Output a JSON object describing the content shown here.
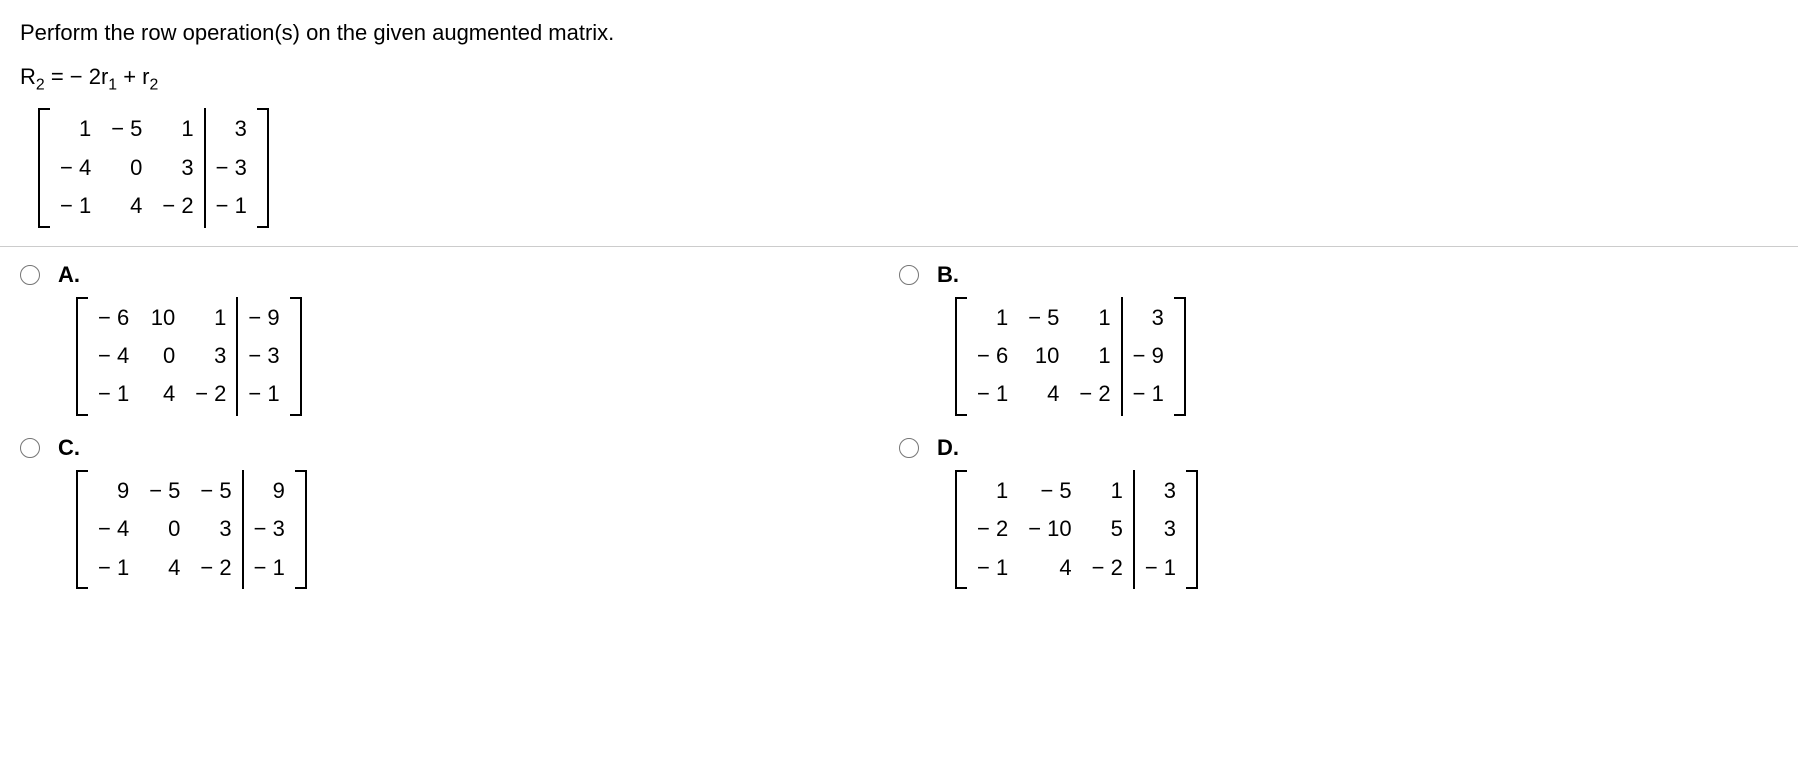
{
  "prompt": "Perform the row operation(s) on the given augmented matrix.",
  "operation_html": "R<span class=\"sub\">2</span> = − 2r<span class=\"sub\">1</span> + r<span class=\"sub\">2</span>",
  "given_matrix": {
    "left": [
      [
        "1",
        "− 5",
        "1"
      ],
      [
        "− 4",
        "0",
        "3"
      ],
      [
        "− 1",
        "4",
        "− 2"
      ]
    ],
    "right": [
      [
        "3"
      ],
      [
        "− 3"
      ],
      [
        "− 1"
      ]
    ]
  },
  "choices": [
    {
      "id": "A",
      "label": "A.",
      "matrix": {
        "left": [
          [
            "− 6",
            "10",
            "1"
          ],
          [
            "− 4",
            "0",
            "3"
          ],
          [
            "− 1",
            "4",
            "− 2"
          ]
        ],
        "right": [
          [
            "− 9"
          ],
          [
            "− 3"
          ],
          [
            "− 1"
          ]
        ]
      }
    },
    {
      "id": "B",
      "label": "B.",
      "matrix": {
        "left": [
          [
            "1",
            "− 5",
            "1"
          ],
          [
            "− 6",
            "10",
            "1"
          ],
          [
            "− 1",
            "4",
            "− 2"
          ]
        ],
        "right": [
          [
            "3"
          ],
          [
            "− 9"
          ],
          [
            "− 1"
          ]
        ]
      }
    },
    {
      "id": "C",
      "label": "C.",
      "matrix": {
        "left": [
          [
            "9",
            "− 5",
            "− 5"
          ],
          [
            "− 4",
            "0",
            "3"
          ],
          [
            "− 1",
            "4",
            "− 2"
          ]
        ],
        "right": [
          [
            "9"
          ],
          [
            "− 3"
          ],
          [
            "− 1"
          ]
        ]
      }
    },
    {
      "id": "D",
      "label": "D.",
      "matrix": {
        "left": [
          [
            "1",
            "− 5",
            "1"
          ],
          [
            "− 2",
            "− 10",
            "5"
          ],
          [
            "− 1",
            "4",
            "− 2"
          ]
        ],
        "right": [
          [
            "3"
          ],
          [
            "3"
          ],
          [
            "− 1"
          ]
        ]
      }
    }
  ],
  "layout": {
    "left_cols": 3,
    "right_cols": 1,
    "rows": 3
  }
}
